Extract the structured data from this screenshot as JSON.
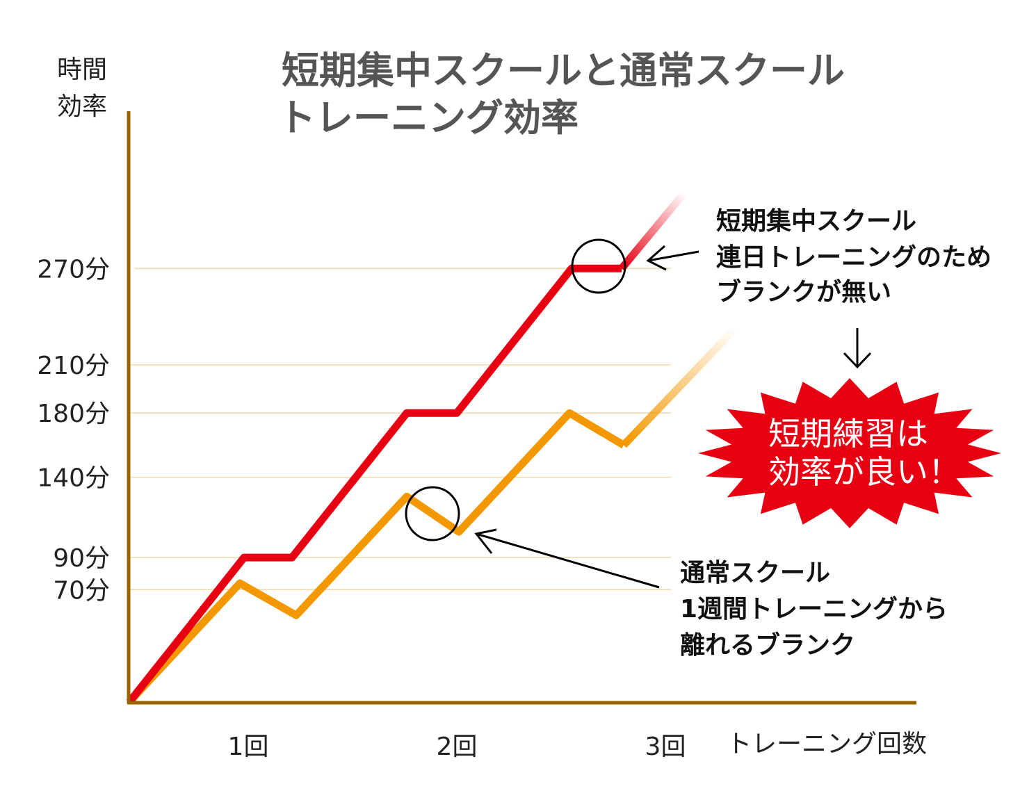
{
  "chart_data": {
    "type": "line",
    "title": [
      "短期集中スクールと通常スクール",
      "トレーニング効率"
    ],
    "ylabel": [
      "時間",
      "効率"
    ],
    "xlabel": "トレーニング回数",
    "xlim": [
      0.43,
      3.5
    ],
    "ylim": [
      0,
      340
    ],
    "x_ticks": [
      {
        "value": 1,
        "label": "1回"
      },
      {
        "value": 2,
        "label": "2回"
      },
      {
        "value": 3,
        "label": "3回"
      }
    ],
    "y_ticks": [
      {
        "value": 270,
        "label": "270分"
      },
      {
        "value": 210,
        "label": "210分"
      },
      {
        "value": 180,
        "label": "180分"
      },
      {
        "value": 140,
        "label": "140分"
      },
      {
        "value": 90,
        "label": "90分"
      },
      {
        "value": 70,
        "label": "70分"
      }
    ],
    "grid": true,
    "series": [
      {
        "name": "短期集中スクール",
        "color": "#e60012",
        "x": [
          0.43,
          0.98,
          1.21,
          1.76,
          2.0,
          2.55,
          2.79
        ],
        "y": [
          0,
          90,
          90,
          180,
          180,
          270,
          270
        ],
        "fade_to": {
          "x": 3.09,
          "y": 317
        }
      },
      {
        "name": "通常スクール",
        "color": "#f39800",
        "x": [
          0.43,
          0.96,
          1.23,
          1.76,
          2.01,
          2.54,
          2.8
        ],
        "y": [
          0,
          74,
          54,
          128,
          106,
          180,
          160
        ],
        "fade_to": {
          "x": 3.33,
          "y": 232
        }
      }
    ],
    "annotations": {
      "red_note": [
        "短期集中スクール",
        "連日トレーニングのため",
        "ブランクが無い"
      ],
      "orange_note": [
        "通常スクール",
        "1週間トレーニングから",
        "離れるブランク"
      ],
      "burst": [
        "短期練習は",
        "効率が良い！"
      ]
    },
    "colors": {
      "axis": "#9a6400",
      "grid": "#f3d7a8",
      "title": "#555555",
      "burst": "#e60012"
    }
  }
}
